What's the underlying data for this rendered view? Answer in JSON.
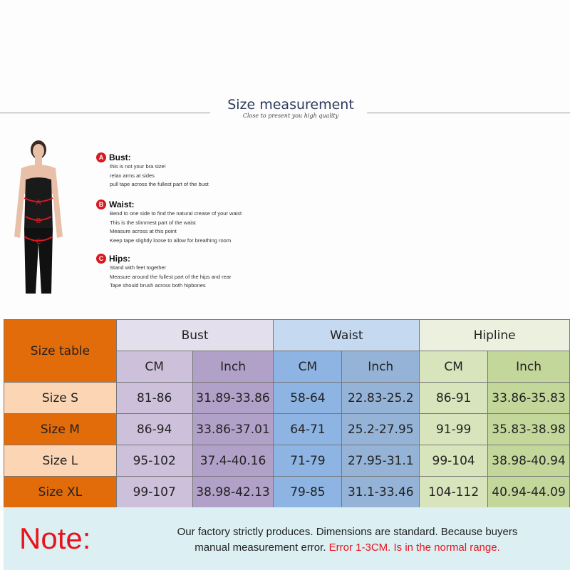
{
  "header": {
    "title": "Size measurement",
    "subtitle": "Close to present you high quality"
  },
  "guide": [
    {
      "badge": "A",
      "title": "Bust:",
      "lines": [
        "this is not your bra size!",
        "relax arms at sides",
        "pull tape across the fullest part of the bust"
      ]
    },
    {
      "badge": "B",
      "title": "Waist:",
      "lines": [
        "Bend  to one side to find the natural crease of your waist",
        "This is the slimmest part of the waist",
        "Measure across at this point",
        "Keep tape slightly loose to allow for breathing room"
      ]
    },
    {
      "badge": "C",
      "title": "Hips:",
      "lines": [
        "Stand with feet together",
        "Measure around the fullest part of the hips and rear",
        "Tape should brush across both hipbones"
      ]
    }
  ],
  "figure_labels": [
    "A",
    "B",
    "C"
  ],
  "table": {
    "corner": "Size table",
    "groups": [
      "Bust",
      "Waist",
      "Hipline"
    ],
    "units": [
      "CM",
      "Inch",
      "CM",
      "Inch",
      "CM",
      "Inch"
    ],
    "rows": [
      {
        "size": "Size S",
        "values": [
          "81-86",
          "31.89-33.86",
          "58-64",
          "22.83-25.2",
          "86-91",
          "33.86-35.83"
        ]
      },
      {
        "size": "Size M",
        "values": [
          "86-94",
          "33.86-37.01",
          "64-71",
          "25.2-27.95",
          "91-99",
          "35.83-38.98"
        ]
      },
      {
        "size": "Size L",
        "values": [
          "95-102",
          "37.4-40.16",
          "71-79",
          "27.95-31.1",
          "99-104",
          "38.98-40.94"
        ]
      },
      {
        "size": "Size XL",
        "values": [
          "99-107",
          "38.98-42.13",
          "79-85",
          "31.1-33.46",
          "104-112",
          "40.94-44.09"
        ]
      }
    ]
  },
  "note": {
    "label": "Note:",
    "text1": "Our factory strictly produces. Dimensions are standard. Because buyers",
    "text2": "manual measurement error.",
    "error": "Error 1-3CM. Is in the normal range."
  },
  "colors": {
    "orange": "#e26b0a",
    "peach": "#fcd5b4",
    "bust_head": "#e4dfec",
    "bust_cm": "#ccc0da",
    "bust_inch": "#b1a0c7",
    "waist_head": "#c5d9f1",
    "waist_cm": "#8db4e2",
    "waist_inch": "#95b3d7",
    "hip_head": "#ebf1de",
    "hip_cm": "#d8e4bc",
    "hip_inch": "#c4d79b",
    "note_bg": "#dcf0f4",
    "red": "#e8141c"
  }
}
